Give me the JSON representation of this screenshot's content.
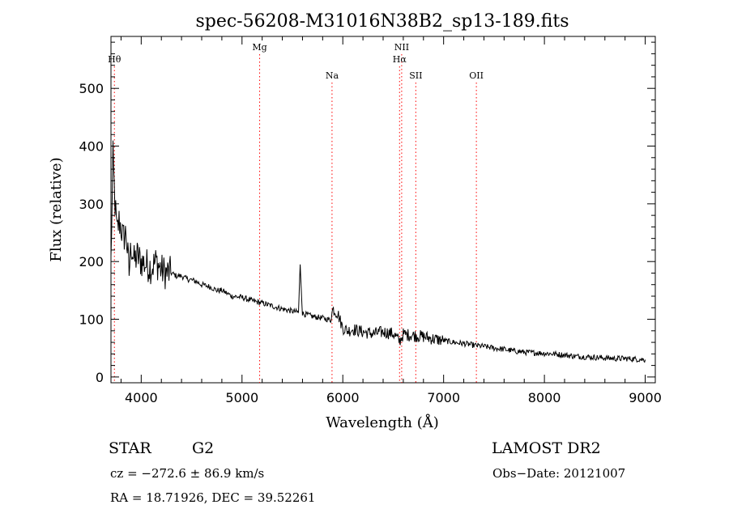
{
  "chart_data": {
    "type": "line",
    "title": "spec-56208-M31016N38B2_sp13-189.fits",
    "xlabel": "Wavelength (Å)",
    "ylabel": "Flux (relative)",
    "xlim": [
      3700,
      9100
    ],
    "ylim": [
      -10,
      590
    ],
    "xticks": [
      4000,
      5000,
      6000,
      7000,
      8000,
      9000
    ],
    "yticks": [
      0,
      100,
      200,
      300,
      400,
      500
    ],
    "grid": false,
    "series": [
      {
        "x": [
          3700,
          3720,
          3740,
          3760,
          3780,
          3800,
          3820,
          3850,
          3880,
          3900,
          3930,
          3960,
          4000,
          4050,
          4100,
          4150,
          4200,
          4250,
          4300,
          4350,
          4400,
          4450,
          4500,
          4550,
          4600,
          4650,
          4700,
          4750,
          4800,
          4850,
          4900,
          5000,
          5100,
          5200,
          5300,
          5400,
          5500,
          5560,
          5577,
          5600,
          5700,
          5800,
          5850,
          5880,
          5900,
          5950,
          6000,
          6050,
          6100,
          6200,
          6300,
          6400,
          6500,
          6563,
          6600,
          6700,
          6800,
          6900,
          7000,
          7100,
          7200,
          7300,
          7400,
          7500,
          7600,
          7700,
          7800,
          7900,
          8000,
          8100,
          8200,
          8300,
          8400,
          8500,
          8600,
          8700,
          8800,
          8900,
          9000
        ],
        "y": [
          200,
          380,
          300,
          250,
          270,
          260,
          240,
          250,
          180,
          230,
          200,
          210,
          200,
          195,
          190,
          200,
          185,
          180,
          180,
          175,
          175,
          170,
          168,
          165,
          160,
          158,
          155,
          150,
          150,
          145,
          140,
          138,
          132,
          128,
          123,
          118,
          114,
          112,
          195,
          110,
          105,
          102,
          100,
          98,
          118,
          110,
          85,
          80,
          83,
          78,
          75,
          78,
          75,
          62,
          74,
          72,
          70,
          66,
          63,
          60,
          58,
          55,
          53,
          50,
          48,
          45,
          43,
          42,
          41,
          40,
          38,
          36,
          35,
          34,
          33,
          32,
          32,
          31,
          30
        ]
      }
    ],
    "lines": [
      {
        "label": "Hθ",
        "x": 3734,
        "row": 1
      },
      {
        "label": "Mg",
        "x": 5175,
        "row": 0
      },
      {
        "label": "Na",
        "x": 5893,
        "row": 2
      },
      {
        "label": "NII",
        "x": 6584,
        "row": 0
      },
      {
        "label": "Hα",
        "x": 6563,
        "row": 1
      },
      {
        "label": "SII",
        "x": 6724,
        "row": 2
      },
      {
        "label": "OII",
        "x": 7325,
        "row": 2
      }
    ],
    "line_color": "#ff0000"
  },
  "info": {
    "class": "STAR",
    "subclass": "G2",
    "survey": "LAMOST DR2",
    "cz": "cz = −272.6 ± 86.9 km/s",
    "obs_date": "Obs−Date: 20121007",
    "coords": "RA =  18.71926, DEC =  39.52261"
  }
}
